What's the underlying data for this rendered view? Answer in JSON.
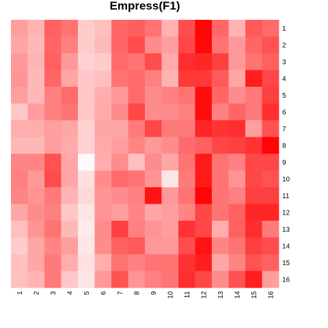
{
  "chart_data": {
    "type": "heatmap",
    "title": "Empress(F1)",
    "xlabel": "",
    "ylabel": "",
    "x_tick_labels": [
      "1",
      "2",
      "3",
      "4",
      "5",
      "6",
      "7",
      "8",
      "9",
      "10",
      "11",
      "12",
      "13",
      "14",
      "15",
      "16"
    ],
    "y_tick_labels": [
      "1",
      "2",
      "3",
      "4",
      "5",
      "6",
      "7",
      "8",
      "9",
      "10",
      "11",
      "12",
      "13",
      "14",
      "15",
      "16"
    ],
    "value_range": [
      0,
      1
    ],
    "color_low": "#ffffff",
    "color_high": "#ff0000",
    "legend": "none",
    "grid": false,
    "values": [
      [
        0.38,
        0.3,
        0.62,
        0.55,
        0.2,
        0.25,
        0.6,
        0.63,
        0.55,
        0.3,
        0.7,
        0.98,
        0.6,
        0.3,
        0.65,
        0.58
      ],
      [
        0.35,
        0.28,
        0.6,
        0.5,
        0.2,
        0.27,
        0.6,
        0.7,
        0.45,
        0.38,
        0.72,
        0.97,
        0.55,
        0.4,
        0.6,
        0.68
      ],
      [
        0.4,
        0.3,
        0.62,
        0.4,
        0.18,
        0.2,
        0.58,
        0.55,
        0.7,
        0.33,
        0.82,
        0.85,
        0.75,
        0.4,
        0.55,
        0.62
      ],
      [
        0.42,
        0.28,
        0.6,
        0.35,
        0.22,
        0.25,
        0.55,
        0.58,
        0.5,
        0.3,
        0.78,
        0.78,
        0.65,
        0.35,
        0.88,
        0.72
      ],
      [
        0.38,
        0.28,
        0.5,
        0.58,
        0.22,
        0.32,
        0.4,
        0.58,
        0.45,
        0.5,
        0.55,
        0.95,
        0.6,
        0.45,
        0.52,
        0.75
      ],
      [
        0.22,
        0.38,
        0.5,
        0.55,
        0.22,
        0.33,
        0.45,
        0.72,
        0.45,
        0.45,
        0.5,
        0.95,
        0.5,
        0.6,
        0.52,
        0.82
      ],
      [
        0.32,
        0.32,
        0.38,
        0.35,
        0.18,
        0.35,
        0.35,
        0.52,
        0.72,
        0.52,
        0.52,
        0.85,
        0.8,
        0.82,
        0.38,
        0.68
      ],
      [
        0.28,
        0.28,
        0.38,
        0.33,
        0.18,
        0.33,
        0.38,
        0.48,
        0.4,
        0.45,
        0.58,
        0.62,
        0.72,
        0.75,
        0.8,
        0.98
      ],
      [
        0.48,
        0.48,
        0.68,
        0.35,
        0.02,
        0.32,
        0.45,
        0.25,
        0.45,
        0.35,
        0.55,
        0.9,
        0.55,
        0.5,
        0.72,
        0.72
      ],
      [
        0.5,
        0.4,
        0.7,
        0.35,
        0.12,
        0.45,
        0.58,
        0.55,
        0.42,
        0.1,
        0.52,
        0.9,
        0.55,
        0.42,
        0.72,
        0.68
      ],
      [
        0.48,
        0.42,
        0.52,
        0.3,
        0.15,
        0.42,
        0.45,
        0.5,
        0.92,
        0.4,
        0.55,
        0.98,
        0.55,
        0.5,
        0.75,
        0.75
      ],
      [
        0.35,
        0.45,
        0.5,
        0.22,
        0.1,
        0.42,
        0.38,
        0.48,
        0.35,
        0.38,
        0.48,
        0.72,
        0.55,
        0.62,
        0.85,
        0.85
      ],
      [
        0.25,
        0.42,
        0.55,
        0.28,
        0.08,
        0.45,
        0.75,
        0.5,
        0.42,
        0.38,
        0.8,
        0.72,
        0.32,
        0.62,
        0.82,
        0.52
      ],
      [
        0.2,
        0.35,
        0.48,
        0.38,
        0.1,
        0.45,
        0.62,
        0.65,
        0.4,
        0.4,
        0.7,
        0.92,
        0.48,
        0.55,
        0.75,
        0.7
      ],
      [
        0.25,
        0.35,
        0.52,
        0.32,
        0.12,
        0.32,
        0.55,
        0.5,
        0.55,
        0.55,
        0.8,
        0.88,
        0.35,
        0.48,
        0.68,
        0.62
      ],
      [
        0.25,
        0.3,
        0.52,
        0.22,
        0.1,
        0.4,
        0.68,
        0.42,
        0.5,
        0.55,
        0.82,
        0.72,
        0.45,
        0.68,
        0.88,
        0.38
      ]
    ]
  }
}
